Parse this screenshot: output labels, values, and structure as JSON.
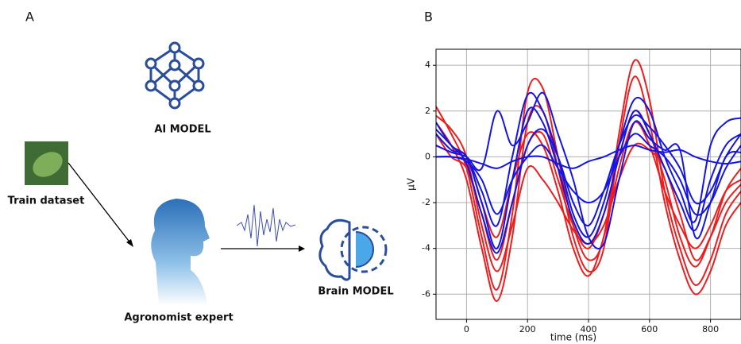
{
  "figure": {
    "panel_a_label": "A",
    "panel_b_label": "B",
    "diagram": {
      "ai_model": "AI MODEL",
      "train_dataset": "Train dataset",
      "agronomist": "Agronomist expert",
      "brain_model": "Brain MODEL"
    }
  },
  "chart_data": {
    "type": "line",
    "xlabel": "time (ms)",
    "ylabel": "μV",
    "x": [
      -100,
      -50,
      0,
      50,
      100,
      150,
      200,
      250,
      300,
      350,
      400,
      450,
      500,
      550,
      600,
      650,
      700,
      750,
      800,
      850,
      900
    ],
    "xlim": [
      -100,
      900
    ],
    "ylim": [
      -7.1,
      4.7
    ],
    "xticks": [
      0,
      200,
      400,
      600,
      800
    ],
    "yticks": [
      -6,
      -4,
      -2,
      0,
      2,
      4
    ],
    "grid": true,
    "series": [
      {
        "color": "#ee1c1c",
        "values": [
          2.2,
          1.0,
          -0.5,
          -3.5,
          -5.8,
          -2.5,
          2.8,
          3.0,
          0.0,
          -3.0,
          -4.5,
          -3.5,
          1.0,
          4.2,
          2.5,
          -1.5,
          -4.0,
          -5.6,
          -4.5,
          -2.5,
          -1.5
        ]
      },
      {
        "color": "#ee1c1c",
        "values": [
          1.5,
          0.5,
          -1.0,
          -4.0,
          -6.3,
          -3.5,
          1.5,
          2.0,
          -0.5,
          -3.5,
          -5.0,
          -4.0,
          0.5,
          3.5,
          1.5,
          -2.0,
          -4.5,
          -6.0,
          -5.0,
          -3.0,
          -2.0
        ]
      },
      {
        "color": "#ee1c1c",
        "values": [
          1.0,
          0.0,
          -0.5,
          -2.5,
          -4.5,
          -2.0,
          0.5,
          1.0,
          -1.0,
          -3.0,
          -4.0,
          -2.5,
          0.0,
          2.0,
          1.0,
          -1.0,
          -3.5,
          -4.8,
          -3.5,
          -1.5,
          -0.5
        ]
      },
      {
        "color": "#ee1c1c",
        "values": [
          0.5,
          0.2,
          0.0,
          -2.0,
          -3.5,
          -1.0,
          1.0,
          0.5,
          -1.5,
          -4.0,
          -5.2,
          -3.5,
          -0.5,
          1.5,
          0.5,
          -1.5,
          -3.0,
          -4.0,
          -3.0,
          -1.5,
          -1.0
        ]
      },
      {
        "color": "#ee1c1c",
        "values": [
          1.8,
          1.2,
          0.0,
          -3.0,
          -5.0,
          -3.0,
          -0.5,
          -1.0,
          -2.0,
          -3.2,
          -3.8,
          -3.0,
          -1.0,
          0.5,
          0.3,
          -0.5,
          -2.5,
          -4.5,
          -3.5,
          -2.0,
          -1.2
        ]
      },
      {
        "color": "#1414e6",
        "values": [
          1.5,
          0.5,
          0.0,
          -1.5,
          -3.0,
          0.0,
          2.7,
          2.0,
          0.0,
          -2.5,
          -3.5,
          -2.0,
          0.5,
          2.5,
          2.0,
          0.0,
          -1.5,
          -2.8,
          0.5,
          1.5,
          1.7
        ]
      },
      {
        "color": "#1414e6",
        "values": [
          1.0,
          0.3,
          0.0,
          -2.0,
          -4.0,
          -1.0,
          2.0,
          1.5,
          -0.5,
          -2.8,
          -3.8,
          -2.5,
          0.0,
          2.0,
          1.0,
          -0.5,
          -2.0,
          -3.2,
          -1.0,
          0.5,
          1.0
        ]
      },
      {
        "color": "#1414e6",
        "values": [
          0.0,
          0.0,
          -0.2,
          -1.0,
          -2.5,
          -1.0,
          0.0,
          0.5,
          -0.5,
          -1.5,
          -2.0,
          -1.5,
          0.0,
          1.0,
          0.5,
          0.0,
          -1.0,
          -2.5,
          -2.0,
          -0.5,
          0.5
        ]
      },
      {
        "color": "#1414e6",
        "values": [
          0.5,
          0.2,
          0.0,
          -0.5,
          2.0,
          0.5,
          1.5,
          2.8,
          1.0,
          -1.0,
          -3.5,
          -3.8,
          -1.0,
          1.5,
          0.8,
          0.3,
          0.3,
          -3.5,
          -2.0,
          0.0,
          0.2
        ]
      },
      {
        "color": "#1414e6",
        "values": [
          0.0,
          0.0,
          -0.1,
          -0.3,
          -0.5,
          -0.2,
          0.0,
          0.0,
          -0.3,
          -0.5,
          -0.2,
          0.0,
          0.3,
          0.5,
          0.3,
          0.2,
          0.3,
          0.0,
          -0.2,
          -0.3,
          -0.2
        ]
      },
      {
        "color": "#1414e6",
        "values": [
          1.2,
          0.5,
          -0.3,
          -2.5,
          -4.2,
          -2.0,
          0.5,
          1.2,
          0.0,
          -2.0,
          -3.0,
          -1.5,
          0.5,
          1.8,
          1.3,
          0.5,
          -0.5,
          -2.0,
          -1.5,
          0.0,
          1.0
        ]
      }
    ]
  }
}
